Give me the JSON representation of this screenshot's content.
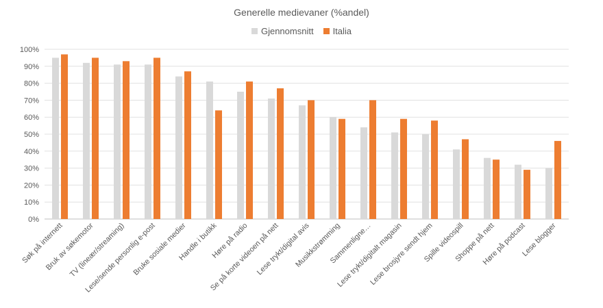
{
  "chart_data": {
    "type": "bar",
    "title": "Generelle medievaner (%andel)",
    "categories": [
      "Søk på internett",
      "Bruk av søkemotor",
      "TV (lineær/streaming)",
      "Lese/sende personlig e-post",
      "Bruke sosiale medier",
      "Handle i butikk",
      "Høre på radio",
      "Se på korte videoen på nett",
      "Lese trykt/digital avis",
      "Musikkstrømming",
      "Sammenligne…",
      "Lese trykt/digitalt magasin",
      "Lese brosjyre sendt hjem",
      "Spille videospill",
      "Shoppe på nett",
      "Høre på podcast",
      "Lese blogger"
    ],
    "series": [
      {
        "name": "Gjennomsnitt",
        "color": "#d9d9d9",
        "values": [
          95,
          92,
          91,
          91,
          84,
          81,
          75,
          71,
          67,
          60,
          54,
          51,
          50,
          41,
          36,
          32,
          30
        ]
      },
      {
        "name": "Italia",
        "color": "#ed7d31",
        "values": [
          97,
          95,
          93,
          95,
          87,
          64,
          81,
          77,
          70,
          59,
          70,
          59,
          58,
          47,
          35,
          29,
          46
        ]
      }
    ],
    "ylim": [
      0,
      100
    ],
    "yticks": [
      "0%",
      "10%",
      "20%",
      "30%",
      "40%",
      "50%",
      "60%",
      "70%",
      "80%",
      "90%",
      "100%"
    ],
    "grid": true,
    "legend_position": "top"
  }
}
